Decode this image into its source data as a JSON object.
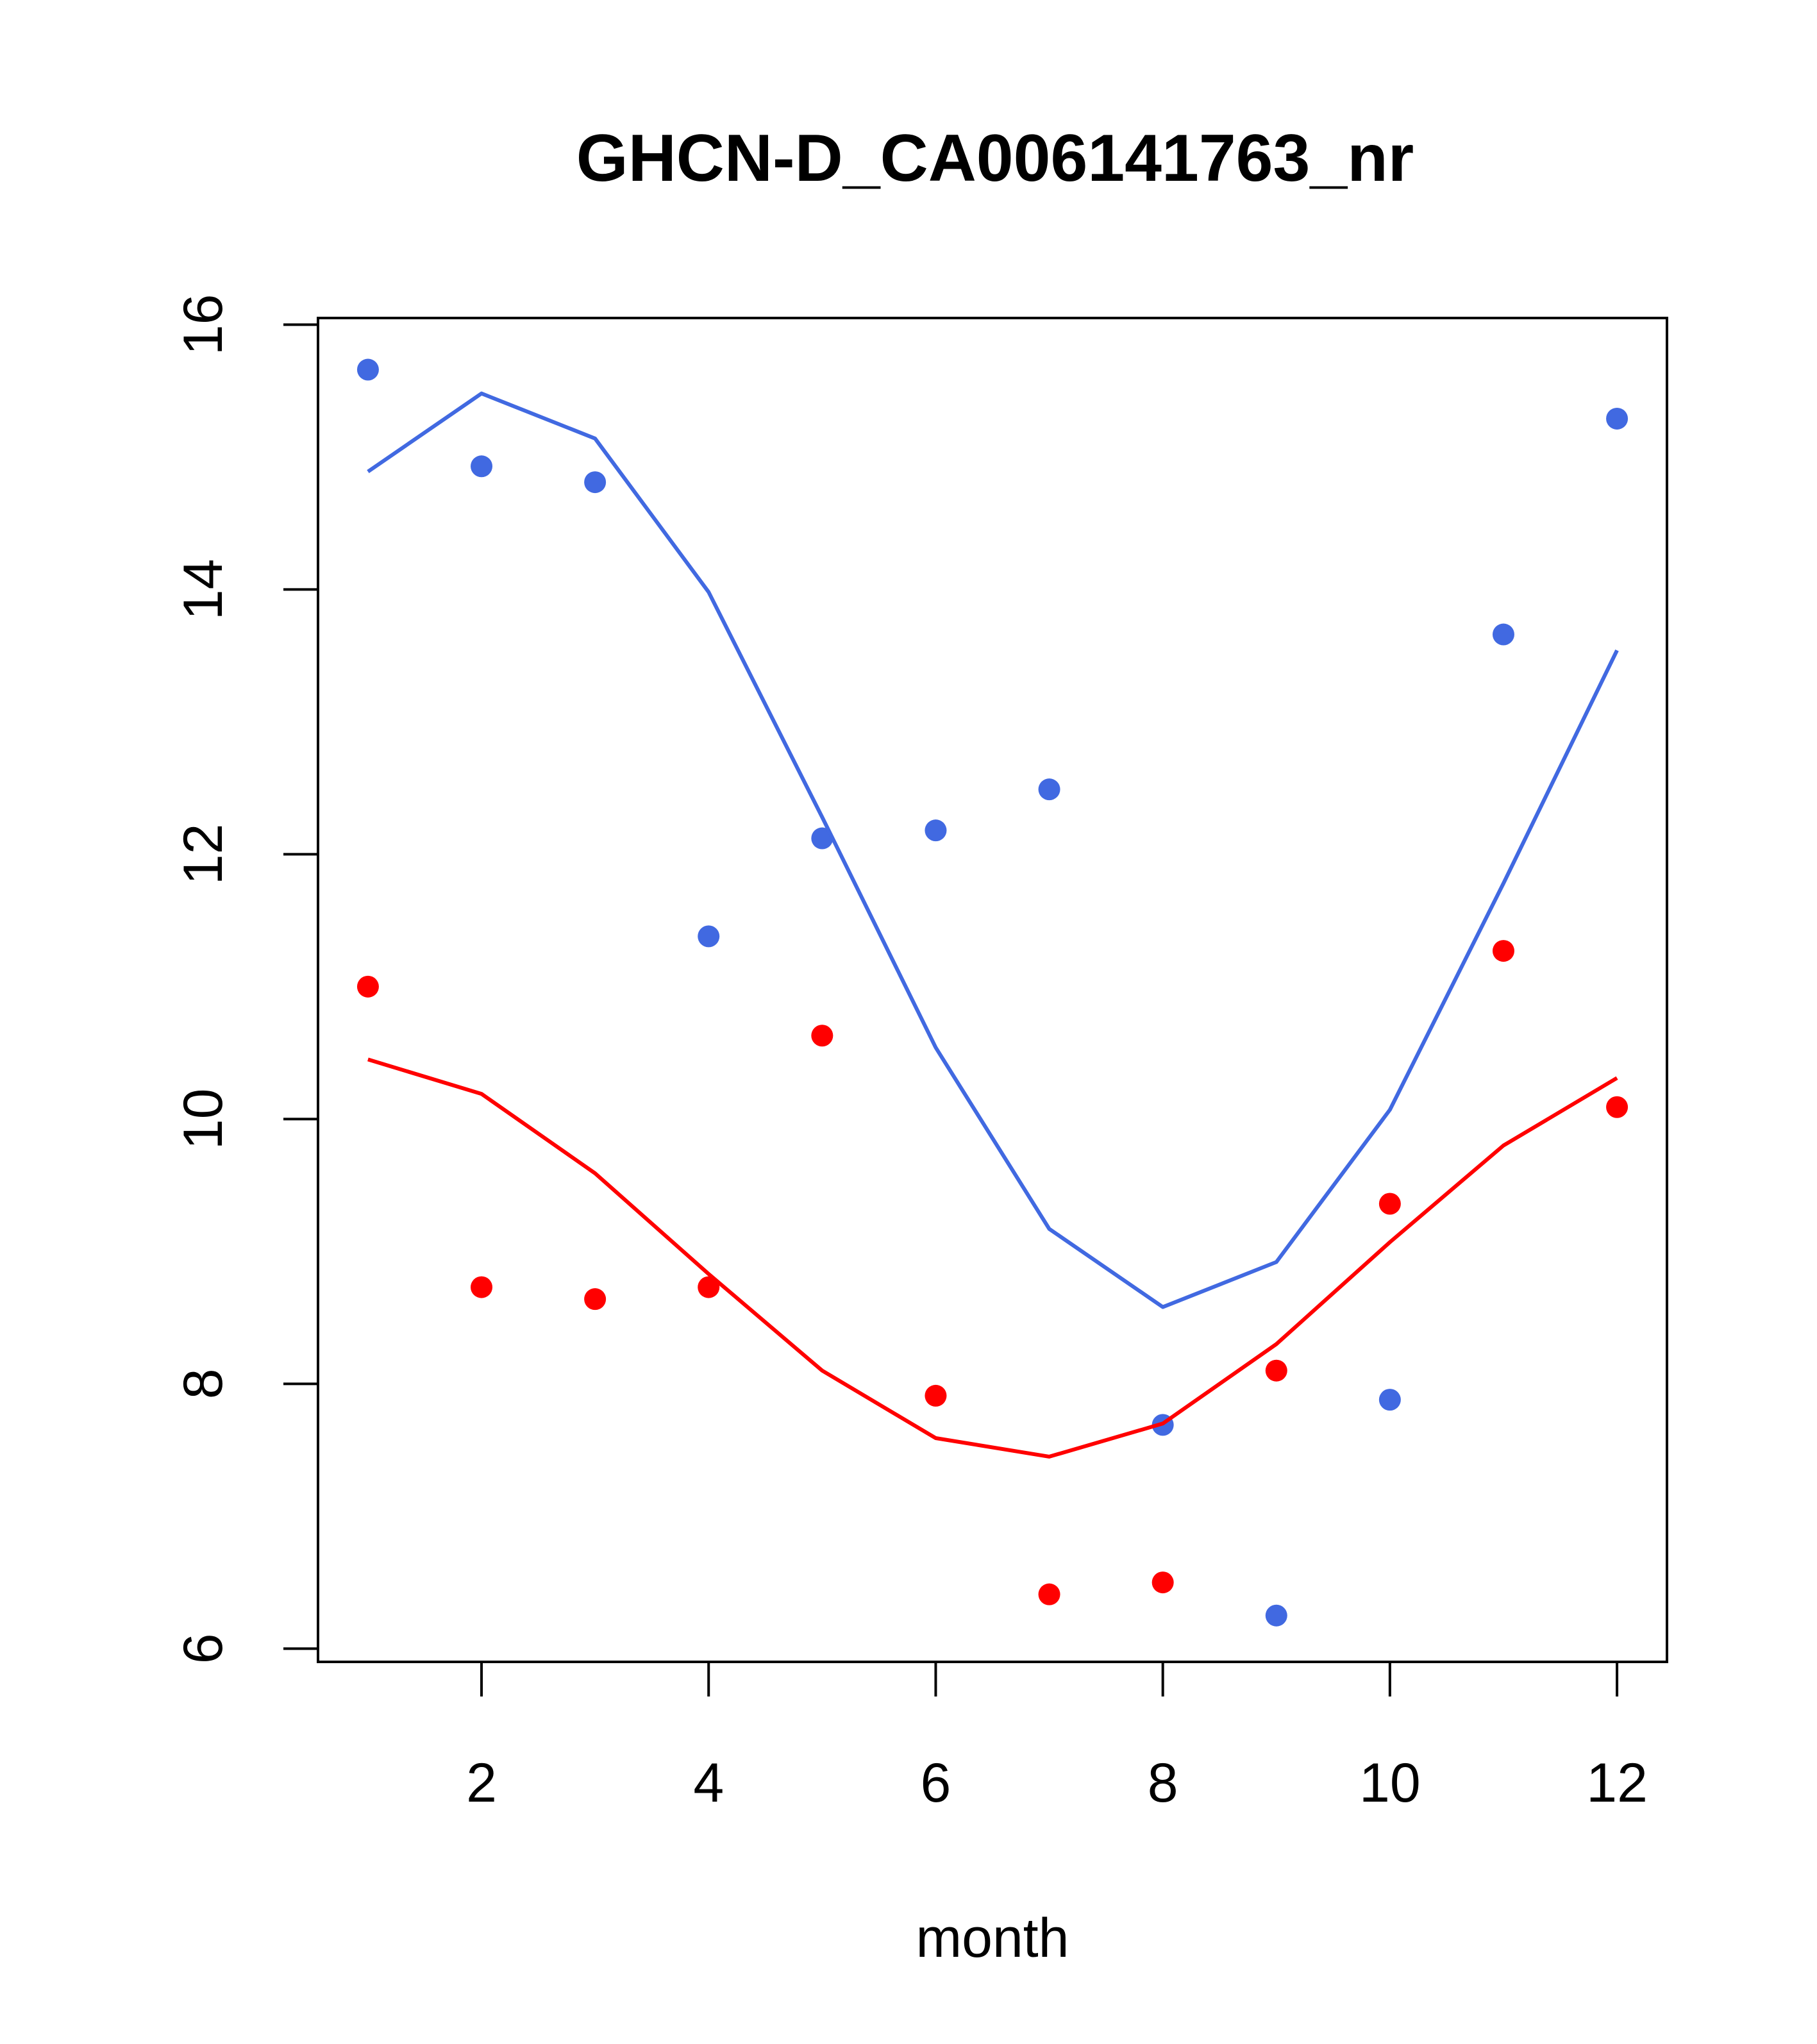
{
  "chart_data": {
    "type": "line",
    "title": "GHCN-D_CA006141763_nr",
    "xlabel": "month",
    "ylabel": "",
    "xlim": [
      0.56,
      12.44
    ],
    "ylim": [
      5.9,
      16.05
    ],
    "x_ticks": [
      "2",
      "4",
      "6",
      "8",
      "10",
      "12"
    ],
    "y_ticks": [
      "6",
      "8",
      "10",
      "12",
      "14",
      "16"
    ],
    "grid": false,
    "legend": "none",
    "series": [
      {
        "name": "blue-points",
        "mode": "points",
        "color": "#4169E1",
        "x": [
          1,
          2,
          3,
          4,
          5,
          6,
          7,
          8,
          9,
          10,
          11,
          12
        ],
        "values": [
          15.66,
          14.93,
          14.81,
          11.38,
          12.12,
          12.18,
          12.49,
          7.69,
          6.25,
          7.88,
          13.66,
          15.29
        ]
      },
      {
        "name": "blue-line",
        "mode": "line",
        "color": "#4169E1",
        "x": [
          1,
          2,
          3,
          4,
          5,
          6,
          7,
          8,
          9,
          10,
          11,
          12
        ],
        "values": [
          14.89,
          15.48,
          15.14,
          13.98,
          12.28,
          10.54,
          9.17,
          8.58,
          8.92,
          10.07,
          11.78,
          13.54
        ]
      },
      {
        "name": "red-points",
        "mode": "points",
        "color": "#FF0000",
        "x": [
          1,
          2,
          3,
          4,
          5,
          6,
          7,
          8,
          9,
          10,
          11,
          12
        ],
        "values": [
          11.0,
          8.73,
          8.64,
          8.73,
          10.63,
          7.91,
          6.41,
          6.5,
          8.1,
          9.36,
          11.27,
          10.09
        ]
      },
      {
        "name": "red-line",
        "mode": "line",
        "color": "#FF0000",
        "x": [
          1,
          2,
          3,
          4,
          5,
          6,
          7,
          8,
          9,
          10,
          11,
          12
        ],
        "values": [
          10.45,
          10.19,
          9.59,
          8.83,
          8.1,
          7.59,
          7.45,
          7.7,
          8.3,
          9.07,
          9.8,
          10.31
        ]
      }
    ]
  }
}
